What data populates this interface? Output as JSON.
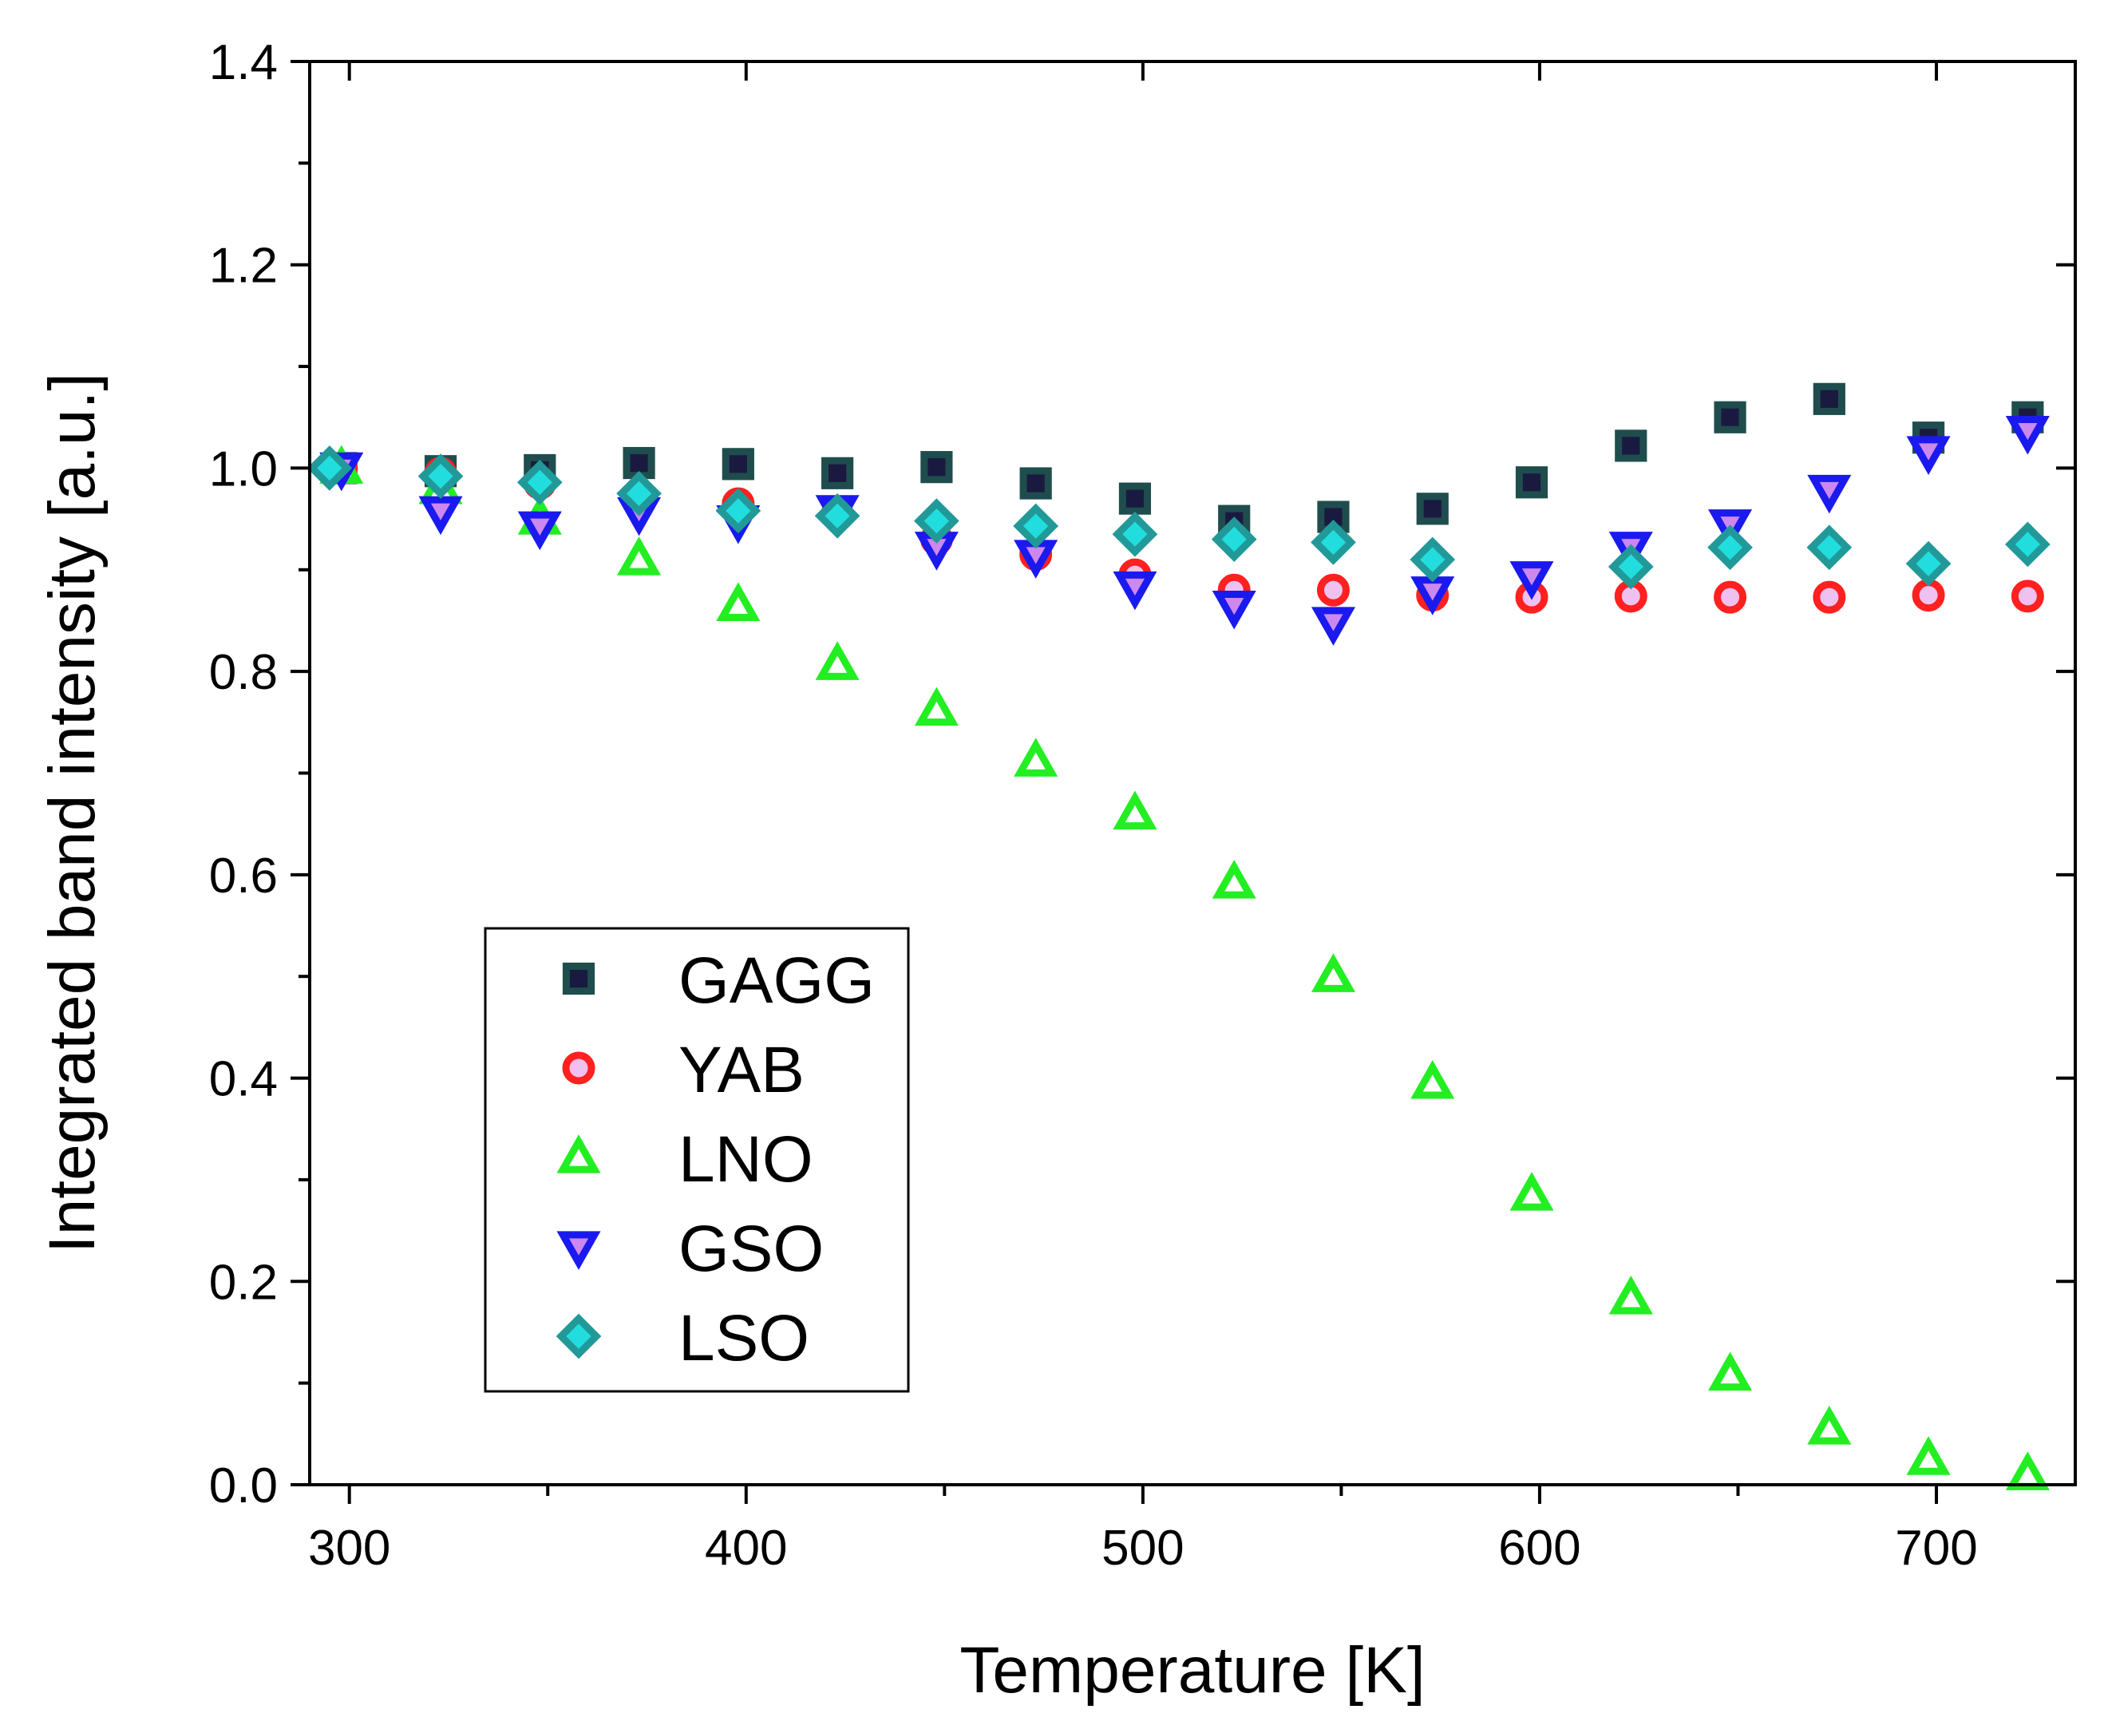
{
  "chart_data": {
    "type": "scatter",
    "title": "",
    "xlabel": "Temperature [K]",
    "ylabel": "Integrated band intensity [a.u.]",
    "xlim": [
      290,
      735
    ],
    "ylim": [
      0.0,
      1.4
    ],
    "x_ticks": [
      300,
      400,
      500,
      600,
      700
    ],
    "x_tick_labels": [
      "300",
      "400",
      "500",
      "600",
      "700"
    ],
    "y_ticks": [
      0.0,
      0.2,
      0.4,
      0.6,
      0.8,
      1.0,
      1.2,
      1.4
    ],
    "y_tick_labels": [
      "0.0",
      "0.2",
      "0.4",
      "0.6",
      "0.8",
      "1.0",
      "1.2",
      "1.4"
    ],
    "grid": false,
    "legend_position": "lower-left",
    "series": [
      {
        "name": "GAGG",
        "marker": "square",
        "fill": "#1a1a40",
        "stroke": "#1f4d4d",
        "x": [
          298,
          323,
          348,
          373,
          398,
          423,
          448,
          473,
          498,
          523,
          548,
          573,
          598,
          623,
          648,
          673,
          698,
          723
        ],
        "y": [
          1.0,
          0.997,
          0.998,
          1.005,
          1.004,
          0.995,
          1.001,
          0.985,
          0.97,
          0.948,
          0.952,
          0.96,
          0.986,
          1.022,
          1.05,
          1.068,
          1.03,
          1.05
        ]
      },
      {
        "name": "YAB",
        "marker": "circle",
        "fill": "#f0c0f0",
        "stroke": "#ff2020",
        "x": [
          298,
          323,
          348,
          373,
          398,
          423,
          448,
          473,
          498,
          523,
          548,
          573,
          598,
          623,
          648,
          673,
          698,
          723
        ],
        "y": [
          1.0,
          0.995,
          0.985,
          0.97,
          0.965,
          0.955,
          0.93,
          0.915,
          0.895,
          0.88,
          0.88,
          0.875,
          0.873,
          0.874,
          0.873,
          0.873,
          0.875,
          0.874
        ]
      },
      {
        "name": "LNO",
        "marker": "triangle-up",
        "fill": "#ffffff",
        "stroke": "#22ee22",
        "x": [
          298,
          323,
          348,
          373,
          398,
          423,
          448,
          473,
          498,
          523,
          548,
          573,
          598,
          623,
          648,
          673,
          698,
          723
        ],
        "y": [
          1.0,
          0.98,
          0.95,
          0.91,
          0.865,
          0.807,
          0.762,
          0.712,
          0.66,
          0.592,
          0.5,
          0.395,
          0.285,
          0.183,
          0.108,
          0.055,
          0.025,
          0.01
        ]
      },
      {
        "name": "GSO",
        "marker": "triangle-down",
        "fill": "#cc88ee",
        "stroke": "#1a1aee",
        "x": [
          298,
          323,
          348,
          373,
          398,
          423,
          448,
          473,
          498,
          523,
          548,
          573,
          598,
          623,
          648,
          673,
          698,
          723
        ],
        "y": [
          1.0,
          0.957,
          0.942,
          0.956,
          0.948,
          0.958,
          0.922,
          0.914,
          0.883,
          0.864,
          0.848,
          0.878,
          0.893,
          0.922,
          0.944,
          0.978,
          1.016,
          1.036
        ]
      },
      {
        "name": "LSO",
        "marker": "diamond",
        "fill": "#22dddd",
        "stroke": "#229999",
        "x": [
          295,
          323,
          348,
          373,
          398,
          423,
          448,
          473,
          498,
          523,
          548,
          573,
          623,
          648,
          673,
          698,
          723
        ],
        "y": [
          1.0,
          0.992,
          0.986,
          0.975,
          0.958,
          0.953,
          0.948,
          0.943,
          0.935,
          0.93,
          0.927,
          0.91,
          0.903,
          0.922,
          0.922,
          0.906,
          0.925
        ]
      }
    ]
  }
}
